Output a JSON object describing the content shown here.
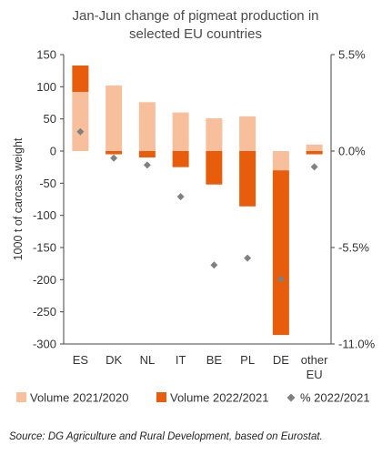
{
  "chart_data": {
    "type": "bar",
    "title_lines": [
      "Jan-Jun change of pigmeat production in",
      "selected EU countries"
    ],
    "ylabel": "1000 t of carcass weight",
    "categories": [
      [
        "ES"
      ],
      [
        "DK"
      ],
      [
        "NL"
      ],
      [
        "IT"
      ],
      [
        "BE"
      ],
      [
        "PL"
      ],
      [
        "DE"
      ],
      [
        "other",
        "EU"
      ]
    ],
    "ylim": [
      -300,
      150
    ],
    "yticks": [
      150,
      100,
      50,
      0,
      -50,
      -100,
      -150,
      -200,
      -250,
      -300
    ],
    "y2lim": [
      -11.0,
      5.5
    ],
    "y2ticks": [
      5.5,
      0.0,
      -5.5,
      -11.0
    ],
    "y2tick_labels": [
      "5.5%",
      "0.0%",
      "-5.5%",
      "-11.0%"
    ],
    "series": [
      {
        "name": "Volume 2021/2020",
        "type": "bar",
        "axis": "left",
        "color": "#f7bf9c",
        "values": [
          92,
          102,
          76,
          60,
          51,
          54,
          -30,
          10
        ]
      },
      {
        "name": "Volume 2022/2021",
        "type": "bar",
        "axis": "left",
        "color": "#e85d0c",
        "values": [
          133,
          -5,
          -10,
          -25,
          -52,
          -86,
          -286,
          -5
        ]
      },
      {
        "name": "% 2022/2021",
        "type": "scatter",
        "axis": "right",
        "color": "#808080",
        "values": [
          1.1,
          -0.4,
          -0.8,
          -2.6,
          -6.5,
          -6.1,
          -7.3,
          -0.9
        ]
      }
    ],
    "legend_position": "bottom",
    "grid": false
  },
  "source": "Source: DG Agriculture and Rural Development, based on Eurostat."
}
